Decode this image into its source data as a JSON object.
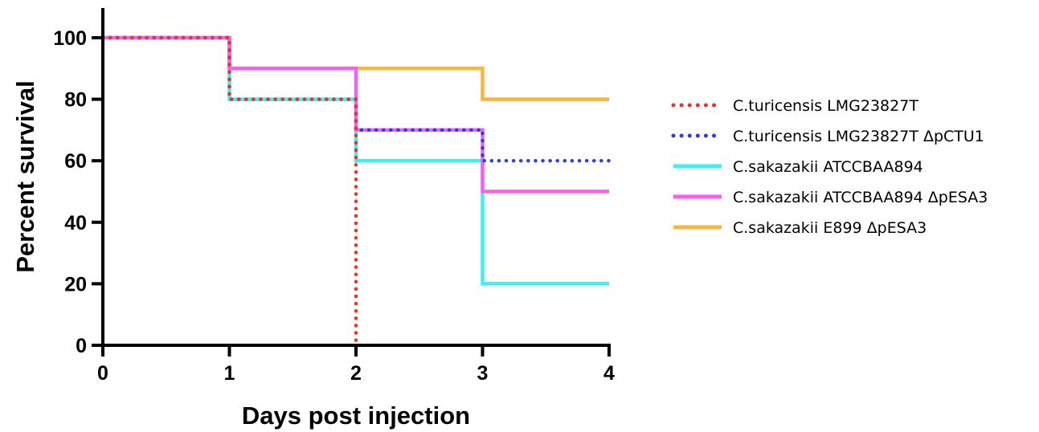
{
  "chart_data": {
    "type": "line",
    "title": "",
    "xlabel": "Days post injection",
    "ylabel": "Percent survival",
    "xlim": [
      0,
      4
    ],
    "ylim": [
      0,
      110
    ],
    "x_ticks": [
      "0",
      "1",
      "2",
      "3",
      "4"
    ],
    "y_ticks": [
      "0",
      "20",
      "40",
      "60",
      "80",
      "100"
    ],
    "grid": false,
    "legend_position": "right",
    "series": [
      {
        "name": "C.turicensis LMG23827T",
        "color": "#ee3324",
        "style": "dotted",
        "steps": [
          [
            0,
            100
          ],
          [
            1,
            80
          ],
          [
            2,
            0
          ]
        ]
      },
      {
        "name": "C.turicensis LMG23827T ΔpCTU1",
        "color": "#2e3fd8",
        "style": "dotted",
        "steps": [
          [
            0,
            100
          ],
          [
            1,
            80
          ],
          [
            2,
            70
          ],
          [
            3,
            60
          ],
          [
            4,
            60
          ]
        ]
      },
      {
        "name": "C.sakazakii ATCCBAA894",
        "color": "#3ff0f0",
        "style": "solid",
        "steps": [
          [
            0,
            100
          ],
          [
            1,
            80
          ],
          [
            2,
            60
          ],
          [
            3,
            20
          ],
          [
            4,
            20
          ]
        ]
      },
      {
        "name": "C.sakazakii ATCCBAA894 ΔpESA3",
        "color": "#f560f0",
        "style": "solid",
        "steps": [
          [
            0,
            100
          ],
          [
            1,
            90
          ],
          [
            2,
            70
          ],
          [
            3,
            50
          ],
          [
            4,
            50
          ]
        ]
      },
      {
        "name": "C.sakazakii E899 ΔpESA3",
        "color": "#f8b73c",
        "style": "solid",
        "steps": [
          [
            0,
            100
          ],
          [
            1,
            90
          ],
          [
            3,
            80
          ],
          [
            4,
            80
          ]
        ]
      }
    ]
  }
}
